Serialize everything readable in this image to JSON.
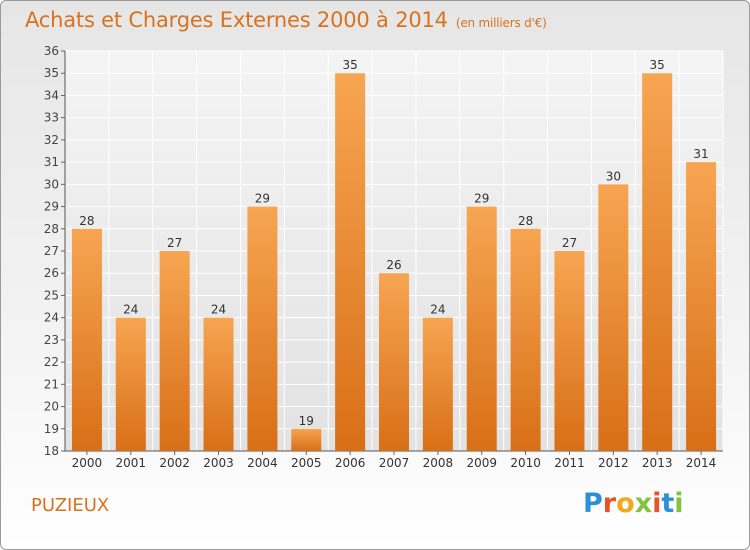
{
  "header": {
    "title": "Achats et Charges Externes 2000 à 2014",
    "subtitle": "(en milliers d'€)"
  },
  "footer": {
    "commune": "PUZIEUX",
    "brand": "Proxiti"
  },
  "colors": {
    "accent": "#d9721e",
    "bar_top": "#f7a552",
    "bar_bottom": "#d86f17",
    "brand_letters": [
      "#2d8fd8",
      "#e8542a",
      "#f2a81d",
      "#7fc43c",
      "#e8542a",
      "#2d8fd8",
      "#7fc43c"
    ]
  },
  "chart_data": {
    "type": "bar",
    "categories": [
      "2000",
      "2001",
      "2002",
      "2003",
      "2004",
      "2005",
      "2006",
      "2007",
      "2008",
      "2009",
      "2010",
      "2011",
      "2012",
      "2013",
      "2014"
    ],
    "values": [
      28,
      24,
      27,
      24,
      29,
      19,
      35,
      26,
      24,
      29,
      28,
      27,
      30,
      35,
      31
    ],
    "title": "Achats et Charges Externes 2000 à 2014",
    "ylim": [
      18,
      36
    ],
    "yticks": [
      18,
      19,
      20,
      21,
      22,
      23,
      24,
      25,
      26,
      27,
      28,
      29,
      30,
      31,
      32,
      33,
      34,
      35,
      36
    ],
    "grid": true,
    "data_labels": true
  }
}
